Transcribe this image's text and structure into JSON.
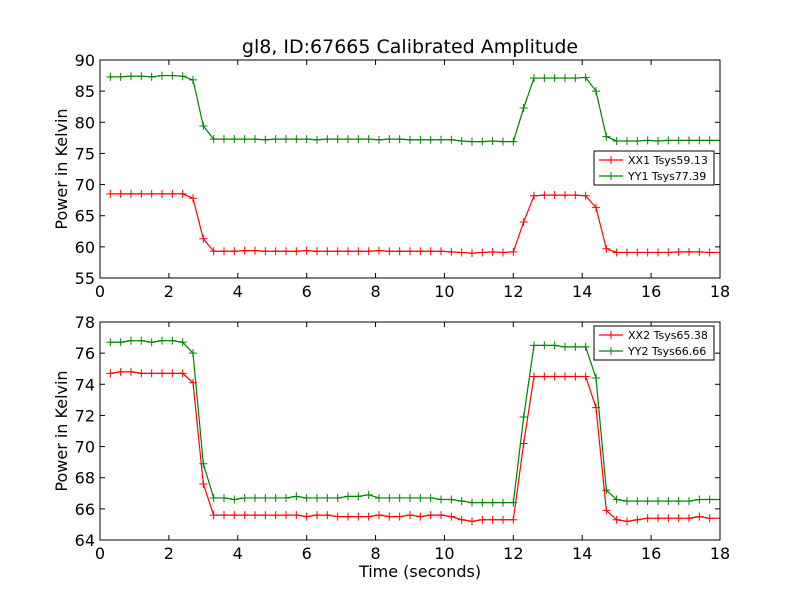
{
  "chart_data": [
    {
      "type": "line",
      "title": "gl8, ID:67665 Calibrated Amplitude",
      "xlabel": "",
      "ylabel": "Power in Kelvin",
      "xlim": [
        0,
        18
      ],
      "ylim": [
        55,
        90
      ],
      "xticks": [
        "0",
        "2",
        "4",
        "6",
        "8",
        "10",
        "12",
        "14",
        "16",
        "18"
      ],
      "yticks": [
        "55",
        "60",
        "65",
        "70",
        "75",
        "80",
        "85",
        "90"
      ],
      "legend_position": "center-right",
      "x": [
        0.3,
        0.6,
        0.9,
        1.2,
        1.5,
        1.8,
        2.1,
        2.4,
        2.7,
        3.0,
        3.3,
        3.6,
        3.9,
        4.2,
        4.5,
        4.8,
        5.1,
        5.4,
        5.7,
        6.0,
        6.3,
        6.6,
        6.9,
        7.2,
        7.5,
        7.8,
        8.1,
        8.4,
        8.7,
        9.0,
        9.3,
        9.6,
        9.9,
        10.2,
        10.5,
        10.8,
        11.1,
        11.4,
        11.7,
        12.0,
        12.3,
        12.6,
        12.9,
        13.2,
        13.5,
        13.8,
        14.1,
        14.4,
        14.7,
        15.0,
        15.3,
        15.6,
        15.9,
        16.2,
        16.5,
        16.8,
        17.1,
        17.4,
        17.7,
        18.0
      ],
      "series": [
        {
          "name": "XX1 Tsys59.13",
          "color": "#ff0000",
          "values": [
            68.5,
            68.5,
            68.5,
            68.5,
            68.5,
            68.5,
            68.5,
            68.5,
            67.8,
            61.3,
            59.3,
            59.3,
            59.3,
            59.4,
            59.4,
            59.3,
            59.3,
            59.3,
            59.3,
            59.4,
            59.3,
            59.3,
            59.3,
            59.3,
            59.3,
            59.3,
            59.4,
            59.3,
            59.3,
            59.3,
            59.3,
            59.3,
            59.3,
            59.2,
            59.1,
            59.0,
            59.1,
            59.2,
            59.1,
            59.2,
            64.0,
            68.2,
            68.3,
            68.3,
            68.3,
            68.3,
            68.2,
            66.3,
            59.7,
            59.1,
            59.1,
            59.1,
            59.1,
            59.1,
            59.1,
            59.2,
            59.2,
            59.2,
            59.1,
            59.1
          ]
        },
        {
          "name": "YY1 Tsys77.39",
          "color": "#008000",
          "values": [
            87.3,
            87.3,
            87.4,
            87.4,
            87.3,
            87.5,
            87.5,
            87.4,
            86.8,
            79.4,
            77.3,
            77.3,
            77.3,
            77.3,
            77.3,
            77.2,
            77.3,
            77.3,
            77.3,
            77.3,
            77.2,
            77.3,
            77.3,
            77.3,
            77.3,
            77.3,
            77.2,
            77.3,
            77.3,
            77.2,
            77.2,
            77.2,
            77.2,
            77.2,
            77.0,
            76.9,
            76.9,
            77.0,
            76.9,
            76.9,
            82.3,
            87.1,
            87.1,
            87.1,
            87.1,
            87.1,
            87.2,
            85.0,
            77.7,
            77.0,
            77.0,
            77.0,
            77.1,
            77.0,
            77.1,
            77.1,
            77.1,
            77.1,
            77.1,
            77.1
          ]
        }
      ]
    },
    {
      "type": "line",
      "title": "",
      "xlabel": "Time (seconds)",
      "ylabel": "Power in Kelvin",
      "xlim": [
        0,
        18
      ],
      "ylim": [
        64,
        78
      ],
      "xticks": [
        "0",
        "2",
        "4",
        "6",
        "8",
        "10",
        "12",
        "14",
        "16",
        "18"
      ],
      "yticks": [
        "64",
        "66",
        "68",
        "70",
        "72",
        "74",
        "76",
        "78"
      ],
      "legend_position": "top-right",
      "x": [
        0.3,
        0.6,
        0.9,
        1.2,
        1.5,
        1.8,
        2.1,
        2.4,
        2.7,
        3.0,
        3.3,
        3.6,
        3.9,
        4.2,
        4.5,
        4.8,
        5.1,
        5.4,
        5.7,
        6.0,
        6.3,
        6.6,
        6.9,
        7.2,
        7.5,
        7.8,
        8.1,
        8.4,
        8.7,
        9.0,
        9.3,
        9.6,
        9.9,
        10.2,
        10.5,
        10.8,
        11.1,
        11.4,
        11.7,
        12.0,
        12.3,
        12.6,
        12.9,
        13.2,
        13.5,
        13.8,
        14.1,
        14.4,
        14.7,
        15.0,
        15.3,
        15.6,
        15.9,
        16.2,
        16.5,
        16.8,
        17.1,
        17.4,
        17.7,
        18.0
      ],
      "series": [
        {
          "name": "XX2 Tsys65.38",
          "color": "#ff0000",
          "values": [
            74.7,
            74.8,
            74.8,
            74.7,
            74.7,
            74.7,
            74.7,
            74.7,
            74.1,
            67.6,
            65.6,
            65.6,
            65.6,
            65.6,
            65.6,
            65.6,
            65.6,
            65.6,
            65.6,
            65.5,
            65.6,
            65.6,
            65.5,
            65.5,
            65.5,
            65.5,
            65.6,
            65.5,
            65.5,
            65.6,
            65.5,
            65.6,
            65.6,
            65.5,
            65.3,
            65.2,
            65.3,
            65.3,
            65.3,
            65.3,
            70.2,
            74.5,
            74.5,
            74.5,
            74.5,
            74.5,
            74.5,
            72.5,
            65.9,
            65.3,
            65.2,
            65.3,
            65.4,
            65.4,
            65.4,
            65.4,
            65.4,
            65.5,
            65.4,
            65.4
          ]
        },
        {
          "name": "YY2 Tsys66.66",
          "color": "#008000",
          "values": [
            76.7,
            76.7,
            76.8,
            76.8,
            76.7,
            76.8,
            76.8,
            76.7,
            76.0,
            68.9,
            66.7,
            66.7,
            66.6,
            66.7,
            66.7,
            66.7,
            66.7,
            66.7,
            66.8,
            66.7,
            66.7,
            66.7,
            66.7,
            66.8,
            66.8,
            66.9,
            66.7,
            66.7,
            66.7,
            66.7,
            66.7,
            66.7,
            66.6,
            66.6,
            66.5,
            66.4,
            66.4,
            66.4,
            66.4,
            66.4,
            71.9,
            76.5,
            76.5,
            76.5,
            76.4,
            76.4,
            76.4,
            74.4,
            67.2,
            66.6,
            66.5,
            66.5,
            66.5,
            66.5,
            66.5,
            66.5,
            66.5,
            66.6,
            66.6,
            66.6
          ]
        }
      ]
    }
  ]
}
